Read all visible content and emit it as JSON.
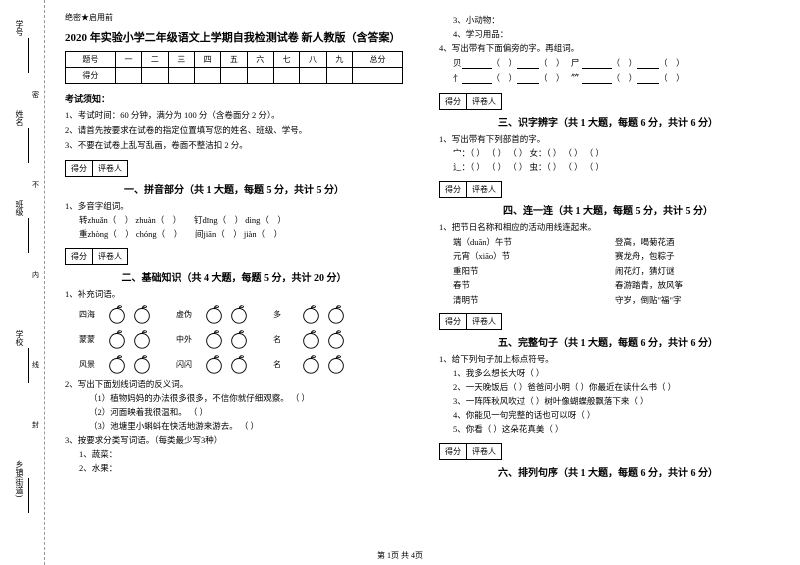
{
  "binding": {
    "labels": [
      "学号",
      "姓名",
      "班级",
      "学校",
      "乡镇(街道)"
    ],
    "markers": [
      "密",
      "不",
      "内",
      "线",
      "封"
    ]
  },
  "secret": "绝密★启用前",
  "title": "2020 年实验小学二年级语文上学期自我检测试卷 新人教版（含答案）",
  "scoreCols": [
    "题号",
    "一",
    "二",
    "三",
    "四",
    "五",
    "六",
    "七",
    "八",
    "九",
    "总分"
  ],
  "scoreRow": "得分",
  "noticeHead": "考试须知：",
  "notices": [
    "1、考试时间：60 分钟，满分为 100 分（含卷面分 2 分）。",
    "2、请首先按要求在试卷的指定位置填写您的姓名、班级、学号。",
    "3、不要在试卷上乱写乱画，卷面不整洁扣 2 分。"
  ],
  "scoreBox": {
    "c1": "得分",
    "c2": "评卷人"
  },
  "sections": {
    "s1": "一、拼音部分（共 1 大题，每题 5 分，共计 5 分）",
    "s2": "二、基础知识（共 4 大题，每题 5 分，共计 20 分）",
    "s3": "三、识字辨字（共 1 大题，每题 6 分，共计 6 分）",
    "s4": "四、连一连（共 1 大题，每题 5 分，共计 5 分）",
    "s5": "五、完整句子（共 1 大题，每题 6 分，共计 6 分）",
    "s6": "六、排列句序（共 1 大题，每题 6 分，共计 6 分）"
  },
  "q1": {
    "head": "1、多音字组词。",
    "l1a": "转zhuǎn（",
    "l1b": "）  zhuàn（",
    "l1c": "）",
    "l1d": "钉dīng（",
    "l1e": "）  dìng（",
    "l1f": "）",
    "l2a": "重zhòng（",
    "l2b": "）  chóng（",
    "l2c": "）",
    "l2d": "间jiān（",
    "l2e": "）  jiàn（",
    "l2f": "）"
  },
  "q2": {
    "head": "1、补充词语。",
    "rows": [
      [
        "四海",
        "虚伪",
        "多"
      ],
      [
        "蒙蒙",
        "中外",
        "名"
      ],
      [
        "风景",
        "闪闪",
        "名"
      ]
    ]
  },
  "q3": {
    "head": "2、写出下面划线词语的反义词。",
    "items": [
      "（1）植物妈妈的办法很多很多，不信你就仔细观察。  （    ）",
      "（2）河面映着我很温和。  （    ）",
      "（3）池塘里小蝌蚪在快活地游来游去。  （    ）"
    ]
  },
  "q4": {
    "head": "3、按要求分类写词语。（每类最少写3种）",
    "items": [
      "1、蔬菜：",
      "2、水果："
    ]
  },
  "rightTop": {
    "items": [
      "3、小动物：",
      "4、学习用品："
    ],
    "q4head": "4、写出带有下面偏旁的字。再组词。",
    "bl1": "贝",
    "bl2": "尸",
    "bl3": "忄",
    "bl4": "⺮"
  },
  "q5": {
    "head": "1、写出带有下列部首的字。",
    "l1": "宀：（    ） （    ） （    ）  女：（    ） （    ） （    ）",
    "l2": "辶：（    ） （    ） （    ）  虫：（    ） （    ） （    ）"
  },
  "q6": {
    "head": "1、把节日名称和相应的活动用线连起来。",
    "left": [
      "端（duān）午节",
      "元宵（xiāo）节",
      "重阳节",
      "春节",
      "清明节"
    ],
    "right": [
      "登高，喝菊花酒",
      "赛龙舟，包粽子",
      "闹花灯，猜灯谜",
      "春游踏青，放风筝",
      "守岁，倒贴\"福\"字"
    ]
  },
  "q7": {
    "head": "1、给下列句子加上标点符号。",
    "items": [
      "1、我多么想长大呀（    ）",
      "2、一天晚饭后（    ）爸爸问小明（    ）你最近在读什么书（    ）",
      "3、一阵阵秋风吹过（    ）树叶像蝴蝶般飘落下来（    ）",
      "4、你能见一句完整的话也可以呀（    ）",
      "5、你看（    ）这朵花真美（    ）"
    ]
  },
  "footer": "第 1页 共 4页"
}
